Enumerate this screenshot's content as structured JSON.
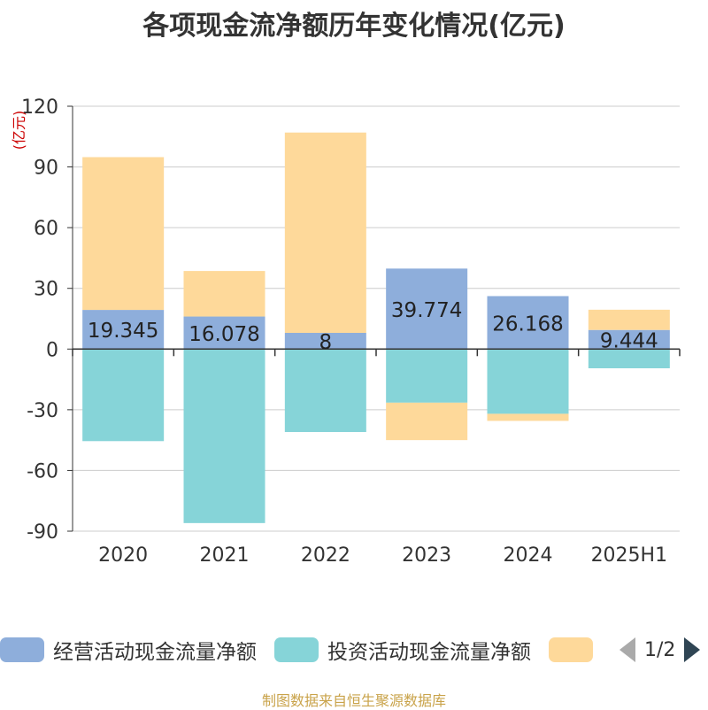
{
  "title": "各项现金流净额历年变化情况(亿元)",
  "source": "制图数据来自恒生聚源数据库",
  "legend": {
    "items": [
      {
        "label": "经营活动现金流量净额",
        "color": "#8eaedb"
      },
      {
        "label": "投资活动现金流量净额",
        "color": "#86d4d8"
      },
      {
        "label": "",
        "color": "#fed99a"
      }
    ],
    "page_text": "1/2"
  },
  "chart_data": {
    "type": "bar",
    "stacked": true,
    "yunit": "(亿元)",
    "yunit_color": "#cc0000",
    "ylim": [
      -90,
      120
    ],
    "yticks": [
      120,
      90,
      60,
      30,
      0,
      -30,
      -60,
      -90
    ],
    "grid": true,
    "categories": [
      "2020",
      "2021",
      "2022",
      "2023",
      "2024",
      "2025H1"
    ],
    "series": [
      {
        "name": "经营活动现金流量净额",
        "color": "#8eaedb",
        "values": [
          19.345,
          16.078,
          8,
          39.774,
          26.168,
          9.444
        ]
      },
      {
        "name": "投资活动现金流量净额",
        "color": "#86d4d8",
        "values": [
          -45.5,
          -86,
          -41,
          -26.5,
          -32,
          -9.5
        ]
      },
      {
        "color": "#fed99a",
        "values": [
          75.5,
          22.5,
          99,
          -18.5,
          -3.5,
          10
        ]
      }
    ],
    "data_labels": [
      "19.345",
      "16.078",
      "8",
      "39.774",
      "26.168",
      "9.444"
    ]
  }
}
